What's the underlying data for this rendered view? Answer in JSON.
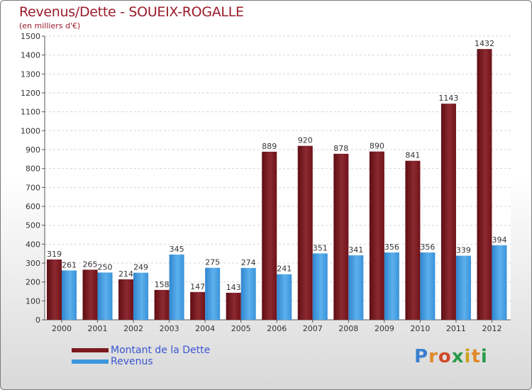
{
  "chart_data": {
    "type": "bar",
    "title": "Revenus/Dette - SOUEIX-ROGALLE",
    "subtitle": "(en milliers d'€)",
    "categories": [
      "2000",
      "2001",
      "2002",
      "2003",
      "2004",
      "2005",
      "2006",
      "2007",
      "2008",
      "2009",
      "2010",
      "2011",
      "2012"
    ],
    "series": [
      {
        "name": "Montant de la Dette",
        "color": "#7a1a1f",
        "values": [
          319,
          265,
          214,
          158,
          147,
          143,
          889,
          920,
          878,
          890,
          841,
          1143,
          1432
        ]
      },
      {
        "name": "Revenus",
        "color": "#3d97dd",
        "values": [
          261,
          250,
          249,
          345,
          275,
          274,
          241,
          351,
          341,
          356,
          356,
          339,
          394
        ]
      }
    ],
    "ylim": [
      0,
      1500
    ],
    "yticks": [
      0,
      100,
      200,
      300,
      400,
      500,
      600,
      700,
      800,
      900,
      1000,
      1100,
      1200,
      1300,
      1400,
      1500
    ],
    "grid": true,
    "legend_position": "bottom-left"
  },
  "logo_text": "Proxiti"
}
